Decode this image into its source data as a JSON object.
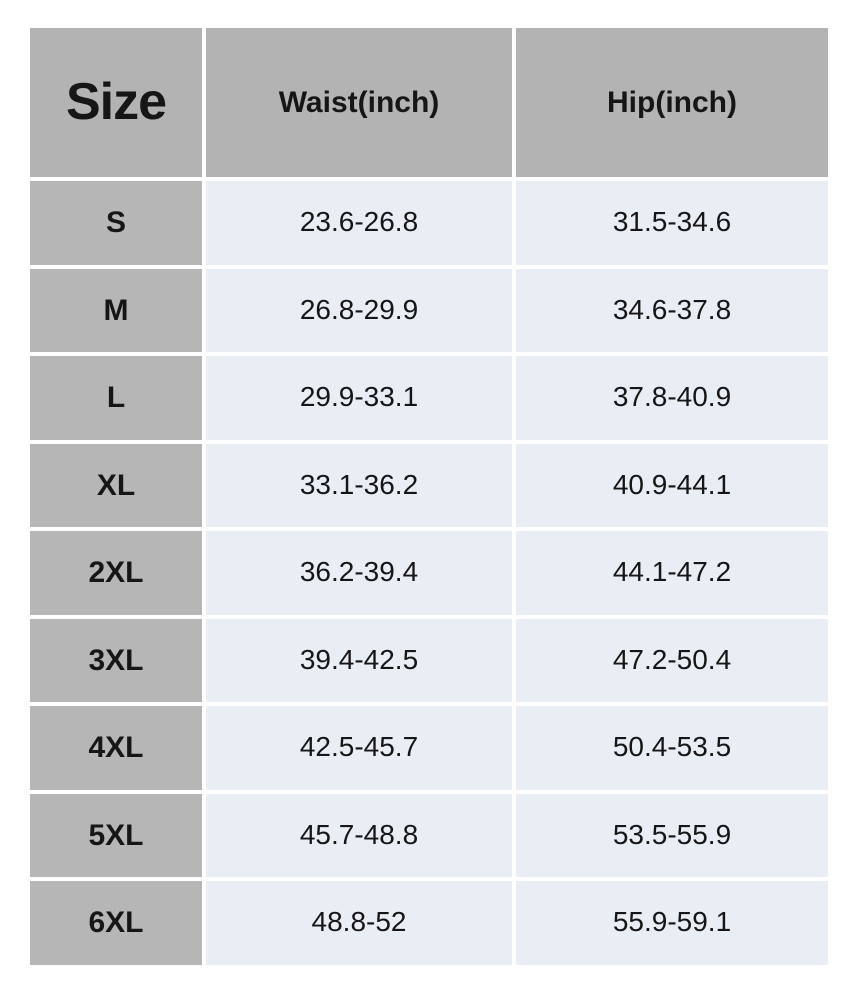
{
  "colors": {
    "page_bg": "#ffffff",
    "gap_color": "#ffffff",
    "header_bg": "#b3b3b3",
    "size_col_bg": "#b6b6b6",
    "data_cell_bg": "#e9edf4",
    "text_color": "#161616"
  },
  "table": {
    "columns": [
      {
        "label": "Size"
      },
      {
        "label": "Waist(inch)"
      },
      {
        "label": "Hip(inch)"
      }
    ],
    "rows": [
      {
        "size": "S",
        "waist": "23.6-26.8",
        "hip": "31.5-34.6"
      },
      {
        "size": "M",
        "waist": "26.8-29.9",
        "hip": "34.6-37.8"
      },
      {
        "size": "L",
        "waist": "29.9-33.1",
        "hip": "37.8-40.9"
      },
      {
        "size": "XL",
        "waist": "33.1-36.2",
        "hip": "40.9-44.1"
      },
      {
        "size": "2XL",
        "waist": "36.2-39.4",
        "hip": "44.1-47.2"
      },
      {
        "size": "3XL",
        "waist": "39.4-42.5",
        "hip": "47.2-50.4"
      },
      {
        "size": "4XL",
        "waist": "42.5-45.7",
        "hip": "50.4-53.5"
      },
      {
        "size": "5XL",
        "waist": "45.7-48.8",
        "hip": "53.5-55.9"
      },
      {
        "size": "6XL",
        "waist": "48.8-52",
        "hip": "55.9-59.1"
      }
    ]
  }
}
